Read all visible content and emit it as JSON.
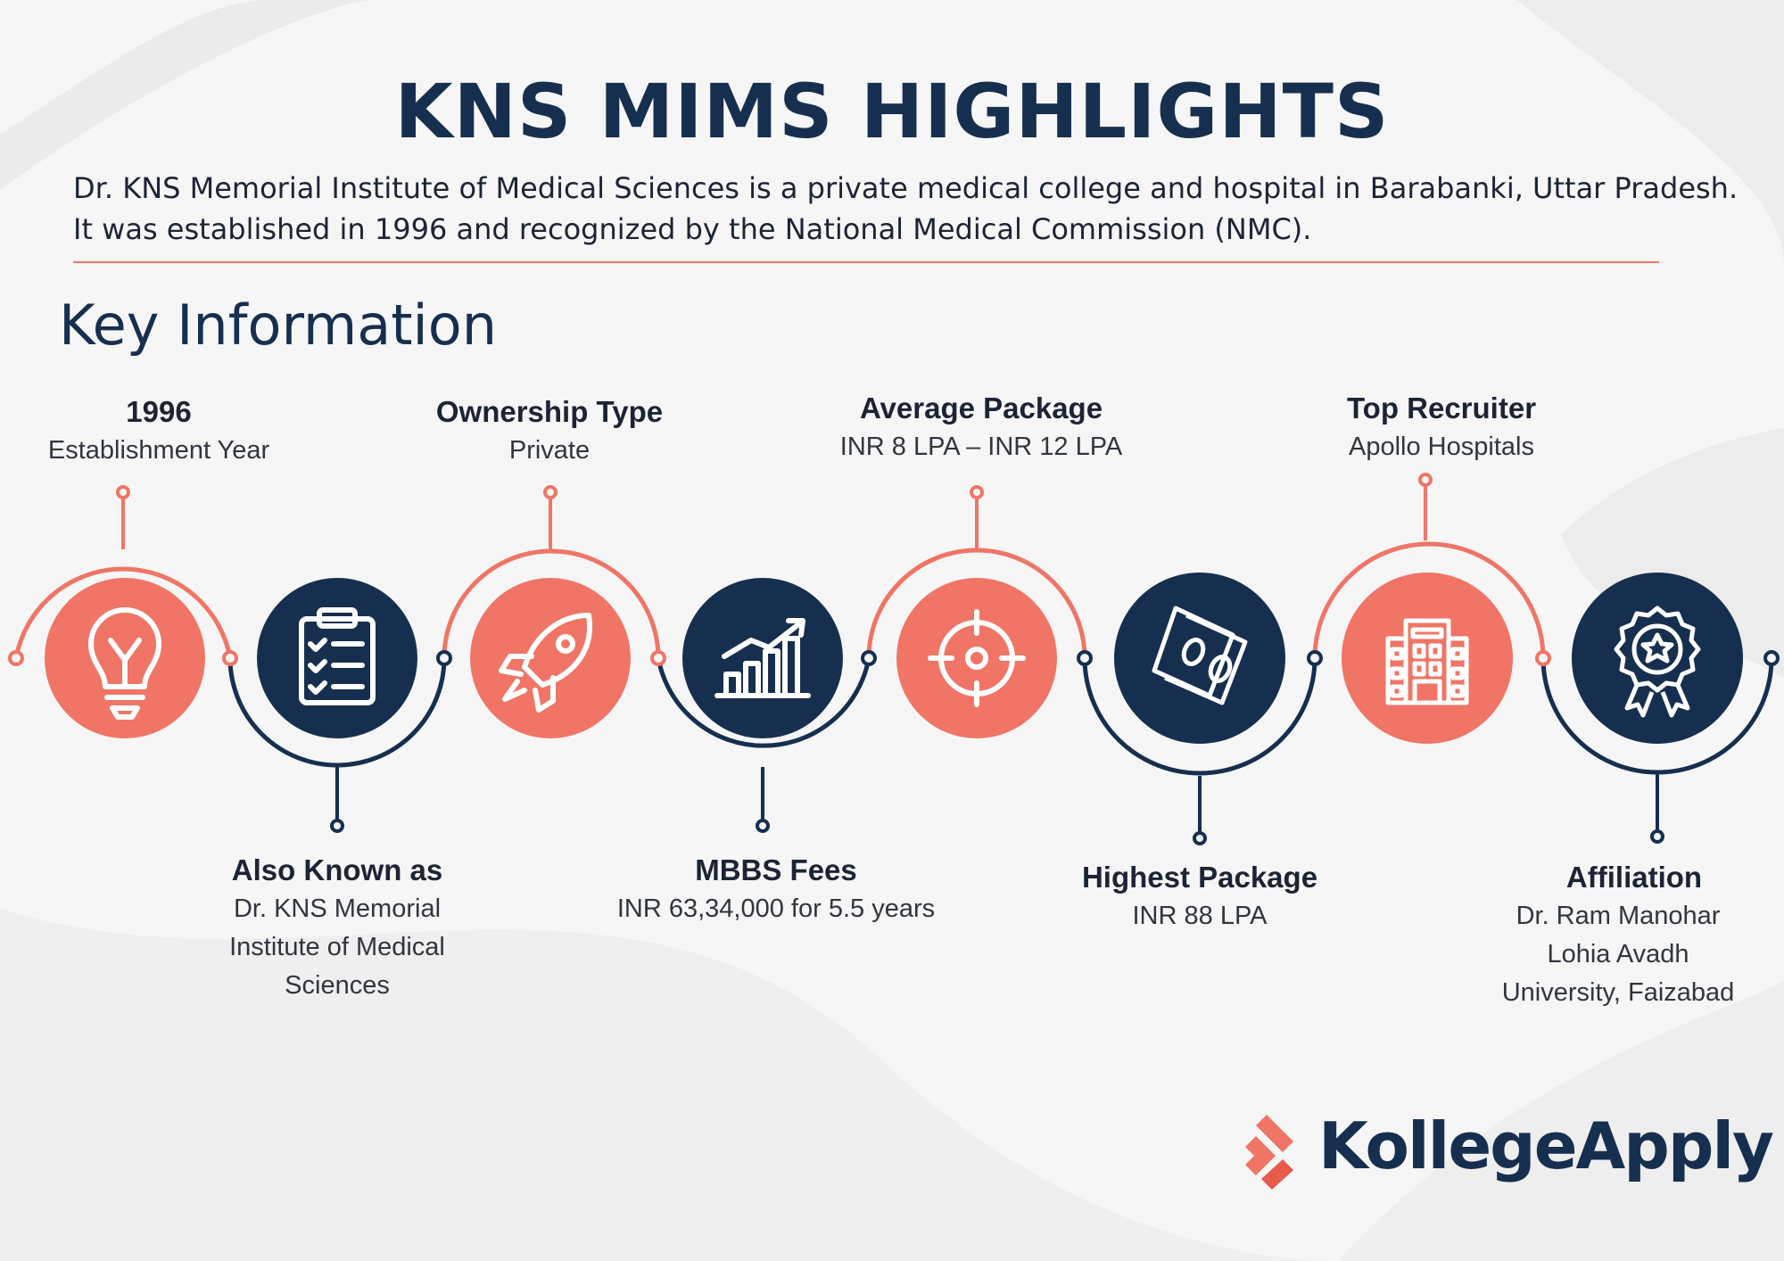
{
  "header": {
    "title": "KNS MIMS HIGHLIGHTS",
    "description": "Dr. KNS Memorial Institute of Medical Sciences is a private medical college and hospital in Barabanki, Uttar Pradesh. It was established in 1996 and recognized by the National Medical Commission (NMC)."
  },
  "section_title": "Key Information",
  "colors": {
    "accent": "#f07566",
    "navy": "#172f4f",
    "background": "#f6f6f6"
  },
  "items": [
    {
      "heading": "1996",
      "value": "Establishment Year",
      "icon": "lightbulb-icon",
      "circle_color": "#f07566"
    },
    {
      "heading": "Also Known as",
      "value": "Dr. KNS Memorial Institute of Medical Sciences",
      "icon": "checklist-clipboard-icon",
      "circle_color": "#172f4f"
    },
    {
      "heading": "Ownership Type",
      "value": "Private",
      "icon": "rocket-icon",
      "circle_color": "#f07566"
    },
    {
      "heading": "MBBS Fees",
      "value": "INR 63,34,000 for 5.5 years",
      "icon": "growth-chart-icon",
      "circle_color": "#172f4f"
    },
    {
      "heading": "Average Package",
      "value": "INR 8 LPA – INR 12 LPA",
      "icon": "target-icon",
      "circle_color": "#f07566"
    },
    {
      "heading": "Highest Package",
      "value": "INR 88 LPA",
      "icon": "money-bills-icon",
      "circle_color": "#172f4f"
    },
    {
      "heading": "Top Recruiter",
      "value": "Apollo Hospitals",
      "icon": "building-icon",
      "circle_color": "#f07566"
    },
    {
      "heading": "Affiliation",
      "value": "Dr. Ram Manohar Lohia Avadh University, Faizabad",
      "icon": "award-badge-icon",
      "circle_color": "#172f4f"
    }
  ],
  "logo": {
    "text": "KollegeApply",
    "icon": "kollegeapply-logo-icon"
  }
}
